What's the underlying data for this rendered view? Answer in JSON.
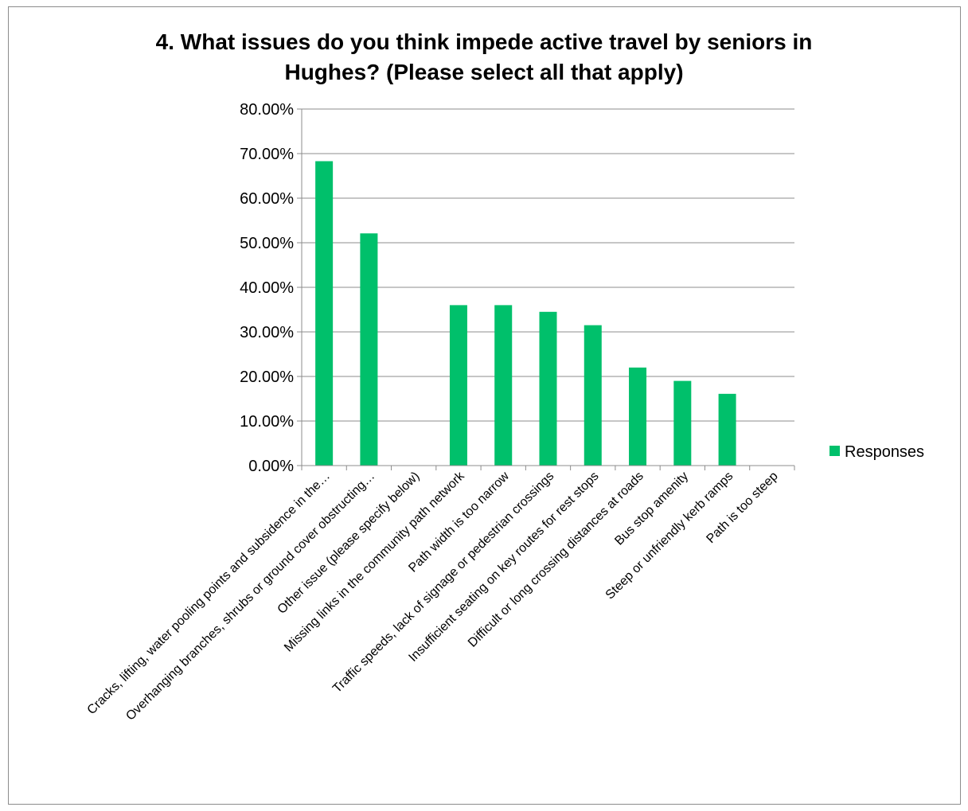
{
  "chart_data": {
    "type": "bar",
    "title_lines": [
      "4. What issues do you think impede active travel by seniors in",
      "Hughes? (Please select all that apply)"
    ],
    "categories": [
      "Cracks, lifting, water pooling points and subsidence in the…",
      "Overhanging branches, shrubs or ground cover obstructing…",
      "Other issue (please specify below)",
      "Missing links in the community path network",
      "Path width is too narrow",
      "Traffic speeds, lack of signage or pedestrian crossings",
      "Insufficient seating on key routes for rest stops",
      "Difficult or long crossing distances at roads",
      "Bus stop amenity",
      "Steep or unfriendly kerb ramps",
      "Path is too steep"
    ],
    "series": [
      {
        "name": "Responses",
        "values": [
          68.3,
          52.1,
          0,
          36.0,
          36.0,
          34.5,
          31.5,
          22.0,
          19.0,
          16.1,
          0
        ]
      }
    ],
    "ylim": [
      0,
      80
    ],
    "yticks": [
      "0.00%",
      "10.00%",
      "20.00%",
      "30.00%",
      "40.00%",
      "50.00%",
      "60.00%",
      "70.00%",
      "80.00%"
    ],
    "grid": true,
    "legend": "right",
    "bar_color": "#00c06b"
  }
}
